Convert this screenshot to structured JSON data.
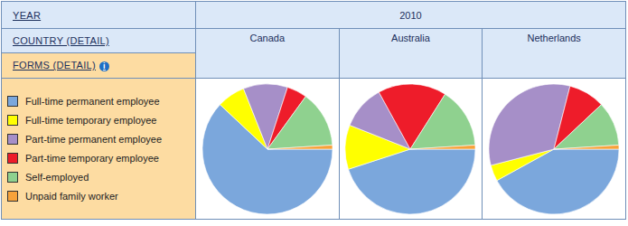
{
  "table": {
    "year_label": "YEAR",
    "year": "2010",
    "country_label": "COUNTRY (DETAIL)",
    "forms_label": "FORMS (DETAIL)"
  },
  "chart_data": [
    {
      "type": "pie",
      "title": "Canada",
      "categories": [
        "Full-time permanent employee",
        "Full-time temporary employee",
        "Part-time permanent employee",
        "Part-time temporary employee",
        "Self-employed",
        "Unpaid family worker"
      ],
      "values": [
        62,
        7,
        11,
        5,
        14,
        1
      ],
      "colors": [
        "#7ba7dc",
        "#ffff00",
        "#a68fc8",
        "#ee1c2a",
        "#8fd18f",
        "#f7a23a"
      ]
    },
    {
      "type": "pie",
      "title": "Australia",
      "categories": [
        "Full-time permanent employee",
        "Full-time temporary employee",
        "Part-time permanent employee",
        "Part-time temporary employee",
        "Self-employed",
        "Unpaid family worker"
      ],
      "values": [
        45,
        11,
        11,
        17,
        15,
        1
      ],
      "colors": [
        "#7ba7dc",
        "#ffff00",
        "#a68fc8",
        "#ee1c2a",
        "#8fd18f",
        "#f7a23a"
      ]
    },
    {
      "type": "pie",
      "title": "Netherlands",
      "categories": [
        "Full-time permanent employee",
        "Full-time temporary employee",
        "Part-time permanent employee",
        "Part-time temporary employee",
        "Self-employed",
        "Unpaid family worker"
      ],
      "values": [
        42,
        4,
        33,
        9,
        11,
        1
      ],
      "colors": [
        "#7ba7dc",
        "#ffff00",
        "#a68fc8",
        "#ee1c2a",
        "#8fd18f",
        "#f7a23a"
      ]
    }
  ]
}
